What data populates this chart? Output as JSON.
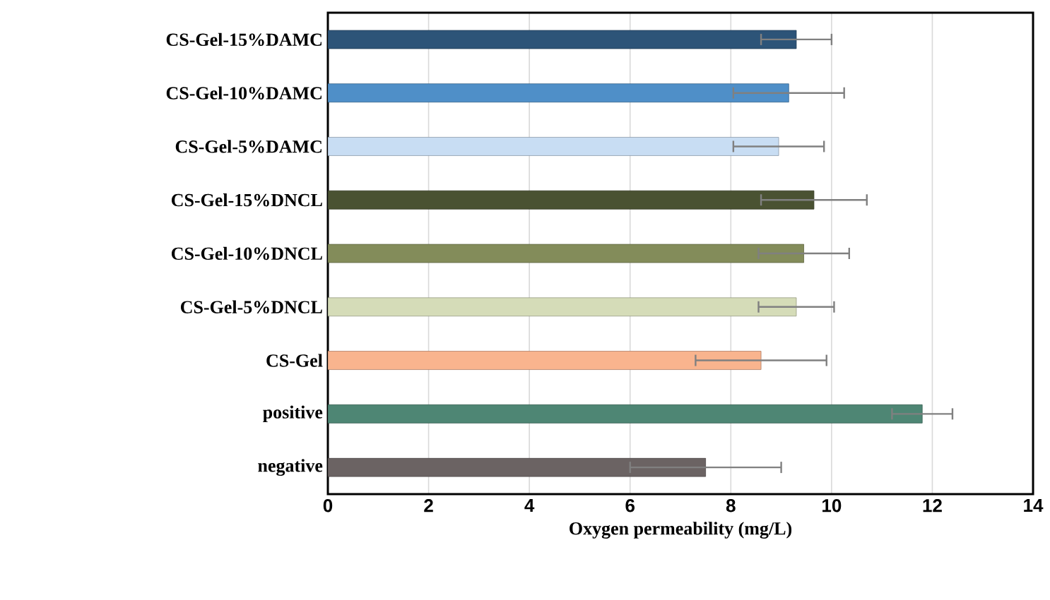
{
  "chart_data": {
    "type": "bar",
    "orientation": "horizontal",
    "xlabel": "Oxygen permeability (mg/L)",
    "categories": [
      "CS-Gel-15%DAMC",
      "CS-Gel-10%DAMC",
      "CS-Gel-5%DAMC",
      "CS-Gel-15%DNCL",
      "CS-Gel-10%DNCL",
      "CS-Gel-5%DNCL",
      "CS-Gel",
      "positive",
      "negative"
    ],
    "values": [
      9.3,
      9.15,
      8.95,
      9.65,
      9.45,
      9.3,
      8.6,
      11.8,
      7.5
    ],
    "errors": [
      0.7,
      1.1,
      0.9,
      1.05,
      0.9,
      0.75,
      1.3,
      0.6,
      1.5
    ],
    "colors": [
      "#2d5478",
      "#4f8fc8",
      "#c8ddf3",
      "#4a5232",
      "#838c5a",
      "#d5dcb8",
      "#f9b48e",
      "#4e8674",
      "#6b6363"
    ],
    "xlim": [
      0,
      14
    ],
    "xticks": [
      0,
      2,
      4,
      6,
      8,
      10,
      12,
      14
    ],
    "grid": "x"
  }
}
